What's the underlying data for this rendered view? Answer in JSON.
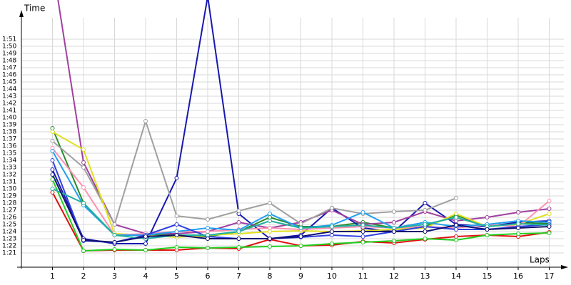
{
  "chart_data": {
    "type": "line",
    "y_label": "Time",
    "x_label": "Laps",
    "x": [
      1,
      2,
      3,
      4,
      5,
      6,
      7,
      8,
      9,
      10,
      11,
      12,
      13,
      14,
      15,
      16,
      17
    ],
    "xlim": [
      0,
      17.5
    ],
    "xticks": [
      1,
      2,
      3,
      4,
      5,
      6,
      7,
      8,
      9,
      10,
      11,
      12,
      13,
      14,
      15,
      16,
      17
    ],
    "ylim": [
      79,
      114
    ],
    "yticks": [
      {
        "value": 81,
        "label": "1:21"
      },
      {
        "value": 82,
        "label": "1:22"
      },
      {
        "value": 83,
        "label": "1:23"
      },
      {
        "value": 84,
        "label": "1:24"
      },
      {
        "value": 85,
        "label": "1:25"
      },
      {
        "value": 86,
        "label": "1:26"
      },
      {
        "value": 87,
        "label": "1:27"
      },
      {
        "value": 88,
        "label": "1:28"
      },
      {
        "value": 89,
        "label": "1:29"
      },
      {
        "value": 90,
        "label": "1:30"
      },
      {
        "value": 91,
        "label": "1:31"
      },
      {
        "value": 92,
        "label": "1:32"
      },
      {
        "value": 93,
        "label": "1:33"
      },
      {
        "value": 94,
        "label": "1:34"
      },
      {
        "value": 95,
        "label": "1:35"
      },
      {
        "value": 96,
        "label": "1:36"
      },
      {
        "value": 97,
        "label": "1:37"
      },
      {
        "value": 98,
        "label": "1:38"
      },
      {
        "value": 99,
        "label": "1:39"
      },
      {
        "value": 100,
        "label": "1:40"
      },
      {
        "value": 101,
        "label": "1:41"
      },
      {
        "value": 102,
        "label": "1:42"
      },
      {
        "value": 103,
        "label": "1:43"
      },
      {
        "value": 104,
        "label": "1:44"
      },
      {
        "value": 105,
        "label": "1:45"
      },
      {
        "value": 106,
        "label": "1:46"
      },
      {
        "value": 107,
        "label": "1:47"
      },
      {
        "value": 108,
        "label": "1:48"
      },
      {
        "value": 109,
        "label": "1:49"
      },
      {
        "value": 110,
        "label": "1:50"
      },
      {
        "value": 111,
        "label": "1:51"
      }
    ],
    "grid": true,
    "series": [
      {
        "color": "#e01010",
        "values": [
          89.5,
          81.3,
          81.4,
          81.4,
          81.4,
          81.7,
          81.6,
          82.9,
          82,
          82.1,
          82.6,
          82.4,
          82.9,
          83.3,
          83.5,
          83.3,
          83.9
        ]
      },
      {
        "color": "#20d020",
        "values": [
          91.3,
          81.3,
          81.5,
          81.4,
          81.8,
          81.7,
          81.8,
          81.9,
          82,
          82.3,
          82.5,
          82.7,
          83,
          82.8,
          83.5,
          83.7,
          83.8
        ]
      },
      {
        "color": "#2a8a2a",
        "values": [
          98.5,
          88,
          83.5,
          83.5,
          83.5,
          83.3,
          84,
          86,
          84.7,
          84.7,
          85.3,
          84.5,
          84.7,
          86.3,
          84.7,
          85.3,
          85.1
        ]
      },
      {
        "color": "#1818b0",
        "values": [
          92.7,
          83,
          82.3,
          82.3,
          91.5,
          117,
          86.5,
          83,
          83.5,
          87.3,
          84.5,
          84,
          88,
          85,
          84.7,
          85.3,
          85.5
        ]
      },
      {
        "color": "#a040a0",
        "values": [
          121.5,
          93.7,
          85,
          83.7,
          83.7,
          84,
          85.3,
          84.5,
          85.3,
          87,
          85,
          85.3,
          86.8,
          85.5,
          86,
          86.7,
          87.2
        ]
      },
      {
        "color": "#a0a0a0",
        "values": [
          96.7,
          93,
          85,
          99.5,
          86.2,
          85.7,
          86.9,
          88,
          85.1,
          87.3,
          86.5,
          86.8,
          87,
          88.7,
          null,
          null,
          null
        ]
      },
      {
        "color": "#e0e020",
        "values": [
          98,
          95.5,
          83.7,
          83.5,
          83.2,
          83.5,
          83.7,
          84,
          84.1,
          84,
          84.1,
          84.3,
          84.5,
          86.5,
          84.7,
          85,
          86.5
        ]
      },
      {
        "color": "#ff90b0",
        "values": [
          95.7,
          90.2,
          83.5,
          83.7,
          84,
          84,
          84.3,
          84.5,
          84.3,
          84.5,
          84.7,
          84.5,
          84.7,
          84.5,
          85,
          84.7,
          88.3
        ]
      },
      {
        "color": "#20a0f0",
        "values": [
          95.3,
          87.7,
          83.5,
          83.5,
          84,
          84.5,
          84.2,
          86.5,
          84.5,
          84.9,
          86.7,
          84.5,
          85.3,
          84.7,
          85,
          85.5,
          85.3
        ]
      },
      {
        "color": "#3040e0",
        "values": [
          94,
          82.7,
          82.5,
          83.5,
          85,
          83.3,
          83,
          83,
          83.2,
          83.5,
          83.3,
          84,
          84.7,
          84.3,
          84.3,
          84.7,
          85
        ]
      },
      {
        "color": "#20b0a0",
        "values": [
          90,
          88,
          83.5,
          83,
          83.5,
          83.5,
          84,
          85.5,
          84.5,
          84.7,
          84.9,
          84.5,
          85,
          86,
          84.7,
          85.1,
          84.9
        ]
      },
      {
        "color": "#101070",
        "values": [
          92,
          82.8,
          82.5,
          83.3,
          83.5,
          83,
          83,
          83,
          83.3,
          84,
          84,
          84,
          84,
          84.9,
          84.3,
          84.5,
          84.7
        ]
      }
    ]
  }
}
